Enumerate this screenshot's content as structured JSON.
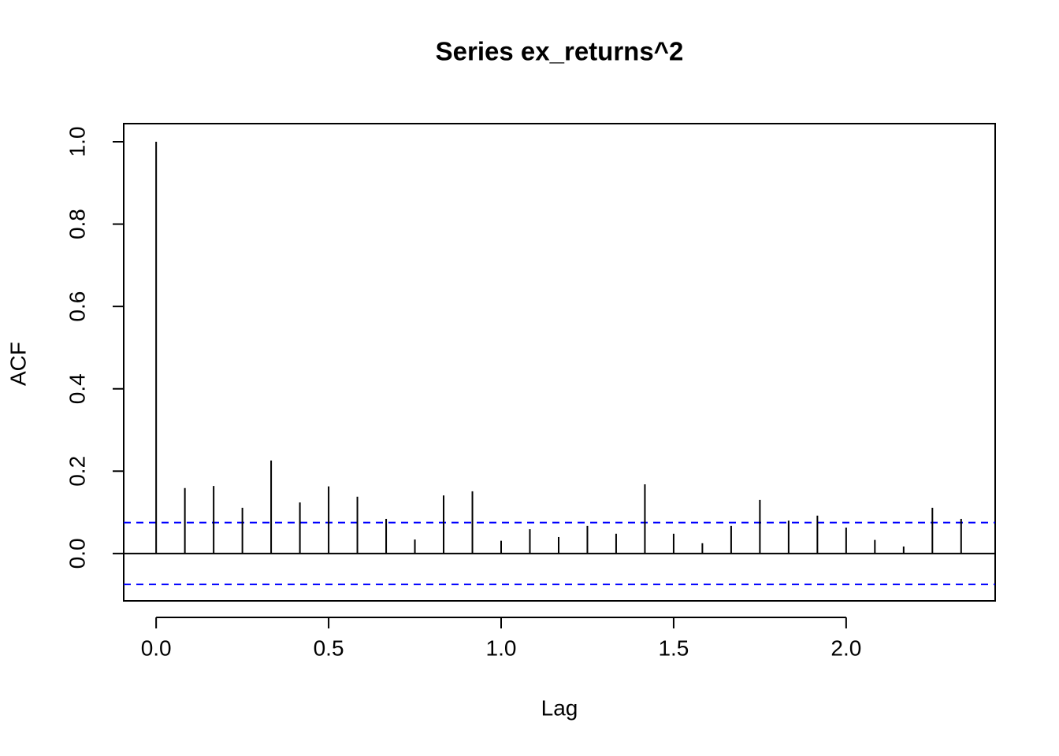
{
  "chart_data": {
    "type": "stem",
    "title": "Series  ex_returns^2",
    "x_label": "Lag",
    "y_label": "ACF",
    "x": [
      0,
      0.0833,
      0.1667,
      0.25,
      0.3333,
      0.4167,
      0.5,
      0.5833,
      0.6667,
      0.75,
      0.8333,
      0.9167,
      1,
      1.0833,
      1.1667,
      1.25,
      1.3333,
      1.4167,
      1.5,
      1.5833,
      1.6667,
      1.75,
      1.8333,
      1.9167,
      2,
      2.0833,
      2.1667,
      2.25,
      2.3333
    ],
    "values": [
      1.0,
      0.159,
      0.164,
      0.111,
      0.226,
      0.124,
      0.163,
      0.138,
      0.084,
      0.034,
      0.141,
      0.151,
      0.031,
      0.059,
      0.04,
      0.067,
      0.048,
      0.168,
      0.048,
      0.025,
      0.067,
      0.13,
      0.08,
      0.092,
      0.063,
      0.033,
      0.017,
      0.111,
      0.084
    ],
    "color": "#000000",
    "conf_lines": [
      0.075,
      -0.075
    ],
    "conf_color": "#0000ff",
    "xlim": [
      -0.094,
      2.432
    ],
    "ylim": [
      -0.115,
      1.044
    ],
    "xticks": [
      {
        "value": 0,
        "label": "0.0"
      },
      0.5,
      {
        "value": 1,
        "label": "1.0"
      },
      1.5,
      {
        "value": 2,
        "label": "2.0"
      }
    ],
    "yticks": [
      {
        "value": 0,
        "label": "0.0"
      },
      0.2,
      0.4,
      0.6,
      0.8,
      {
        "value": 1,
        "label": "1.0"
      }
    ]
  }
}
